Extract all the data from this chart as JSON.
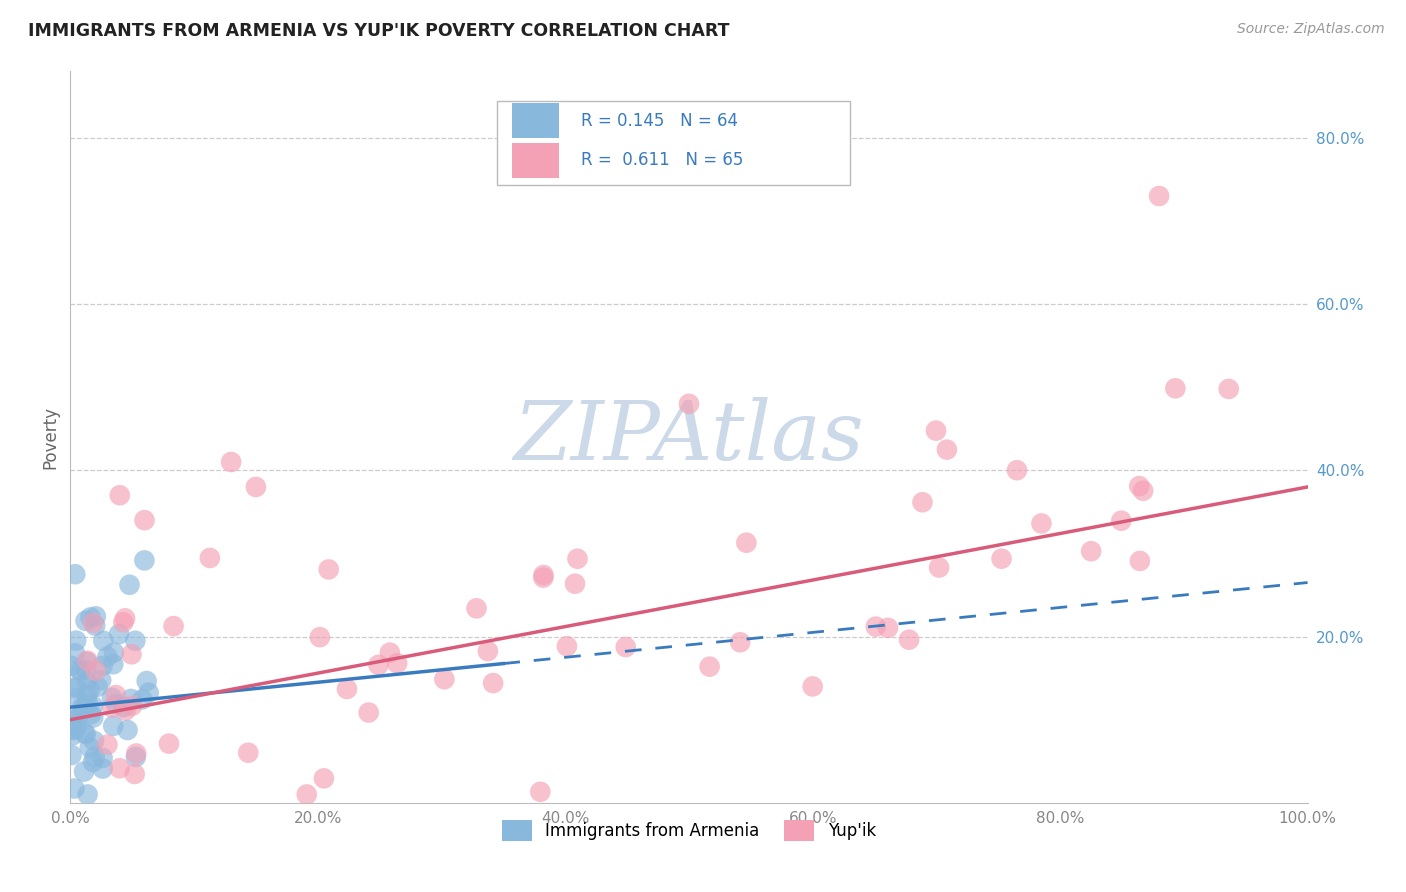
{
  "title": "IMMIGRANTS FROM ARMENIA VS YUP'IK POVERTY CORRELATION CHART",
  "source": "Source: ZipAtlas.com",
  "ylabel": "Poverty",
  "r_armenia": 0.145,
  "n_armenia": 64,
  "r_yupik": 0.611,
  "n_yupik": 65,
  "xlim": [
    0.0,
    1.0
  ],
  "ylim": [
    0.0,
    0.88
  ],
  "color_armenia": "#89b8dd",
  "color_yupik": "#f4a0b5",
  "line_color_armenia": "#3a7bbf",
  "line_color_yupik": "#d95b7a",
  "watermark_color": "#ccd9e8",
  "background_color": "#ffffff",
  "grid_color": "#cccccc",
  "tick_color_right": "#5599cc",
  "tick_color_x": "#888888",
  "legend_text_r_color": "#3a7bbf",
  "legend_text_n_color": "#3a7bbf"
}
